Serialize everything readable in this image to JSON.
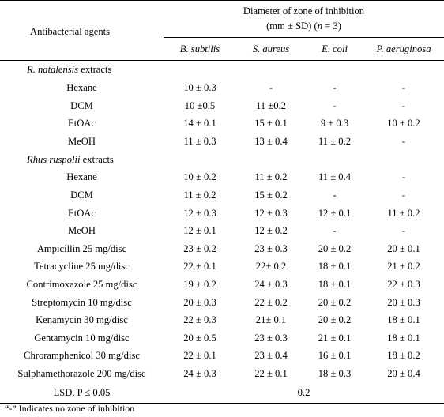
{
  "header": {
    "agents_label": "Antibacterial agents",
    "zone_label_line1": "Diameter of zone of inhibition",
    "zone_label_line2_prefix": "(mm ± SD) (",
    "zone_label_n": "n",
    "zone_label_line2_suffix": " = 3)",
    "organisms": [
      "B. subtilis",
      "S. aureus",
      "E. coli",
      "P. aeruginosa"
    ]
  },
  "groups": [
    {
      "title_italic": "R. natalensis",
      "title_rest": " extracts",
      "rows": [
        {
          "agent": "Hexane",
          "values": [
            "10 ± 0.3",
            "-",
            "-",
            "-"
          ]
        },
        {
          "agent": "DCM",
          "values": [
            "10 ±0.5",
            "11 ±0.2",
            "-",
            "-"
          ]
        },
        {
          "agent": "EtOAc",
          "values": [
            "14 ± 0.1",
            "15 ± 0.1",
            "9 ± 0.3",
            "10 ± 0.2"
          ]
        },
        {
          "agent": "MeOH",
          "values": [
            "11 ± 0.3",
            "13 ± 0.4",
            "11 ± 0.2",
            "-"
          ]
        }
      ]
    },
    {
      "title_italic": "Rhus ruspolii",
      "title_rest": " extracts",
      "rows": [
        {
          "agent": "Hexane",
          "values": [
            "10 ± 0.2",
            "11 ± 0.2",
            "11 ± 0.4",
            "-"
          ]
        },
        {
          "agent": "DCM",
          "values": [
            "11 ± 0.2",
            "15 ± 0.2",
            "-",
            "-"
          ]
        },
        {
          "agent": "EtOAc",
          "values": [
            "12 ± 0.3",
            "12 ± 0.3",
            "12 ± 0.1",
            "11 ± 0.2"
          ]
        },
        {
          "agent": "MeOH",
          "values": [
            "12 ± 0.1",
            "12 ± 0.2",
            "-",
            "-"
          ]
        }
      ]
    }
  ],
  "antibiotics": [
    {
      "agent": "Ampicillin 25 mg/disc",
      "values": [
        "23 ± 0.2",
        "23 ± 0.3",
        "20 ± 0.2",
        "20 ± 0.1"
      ]
    },
    {
      "agent": "Tetracycline 25 mg/disc",
      "values": [
        "22 ± 0.1",
        "22± 0.2",
        "18 ± 0.1",
        "21 ± 0.2"
      ]
    },
    {
      "agent": "Contrimoxazole 25 mg/disc",
      "values": [
        "19 ± 0.2",
        "24 ± 0.3",
        "18 ± 0.1",
        "22 ± 0.3"
      ]
    },
    {
      "agent": "Streptomycin 10 mg/disc",
      "values": [
        "20 ± 0.3",
        "22 ± 0.2",
        "20 ± 0.2",
        "20 ± 0.3"
      ]
    },
    {
      "agent": "Kenamycin 30 mg/disc",
      "values": [
        "22 ± 0.3",
        "21± 0.1",
        "20 ± 0.2",
        "18 ± 0.1"
      ]
    },
    {
      "agent": "Gentamycin 10 mg/disc",
      "values": [
        "20 ± 0.5",
        "23 ± 0.3",
        "21 ± 0.1",
        "18 ± 0.1"
      ]
    },
    {
      "agent": "Chroramphenicol 30 mg/disc",
      "values": [
        "22 ± 0.1",
        "23 ± 0.4",
        "16 ± 0.1",
        "18 ± 0.2"
      ]
    },
    {
      "agent": "Sulphamethorazole 200 mg/disc",
      "values": [
        "24 ± 0.3",
        "22 ± 0.1",
        "18 ± 0.3",
        "20 ± 0.4"
      ]
    }
  ],
  "lsd": {
    "label": "LSD, P ≤ 0.05",
    "value": "0.2"
  },
  "footnote": "“-” Indicates no zone of inhibition"
}
